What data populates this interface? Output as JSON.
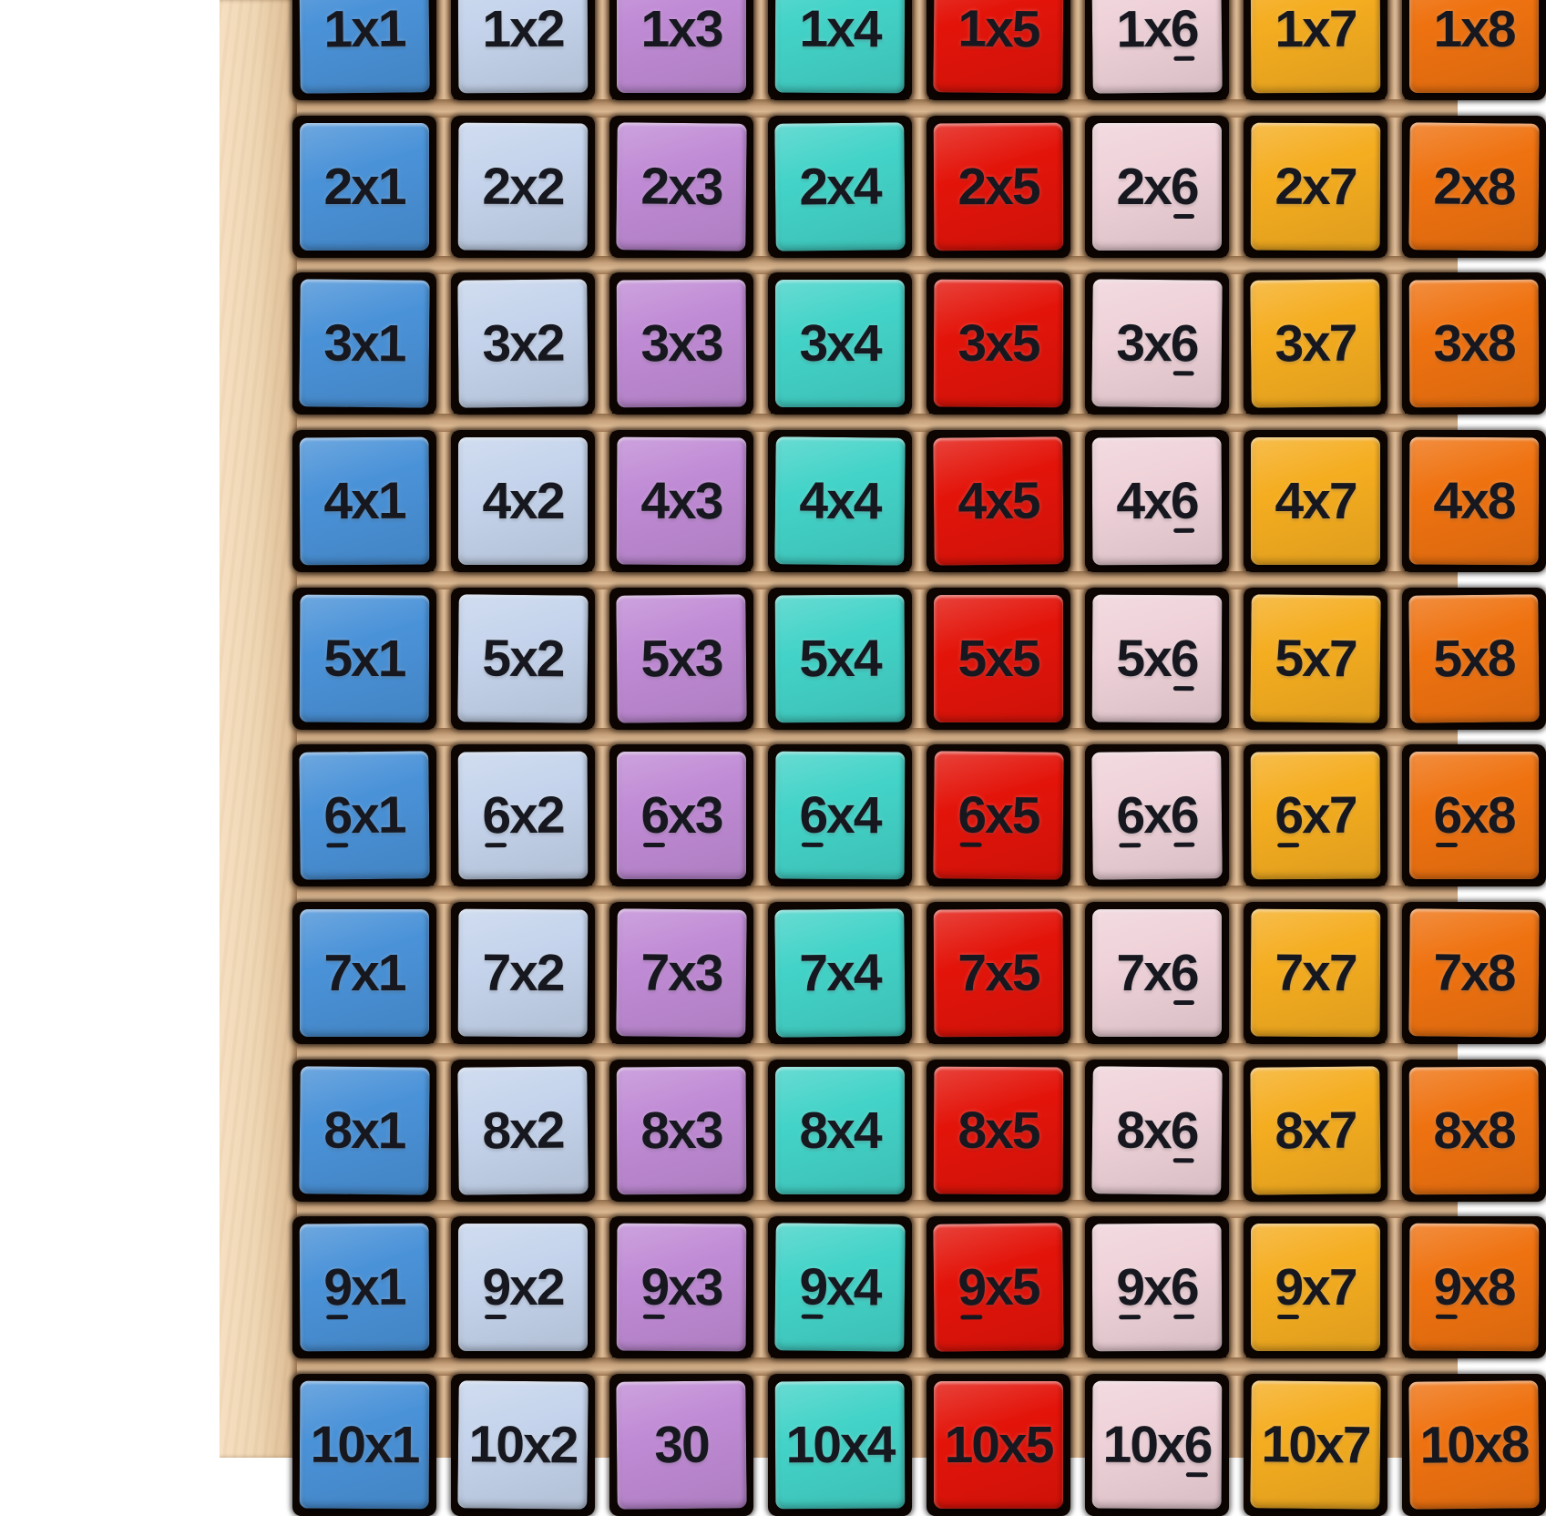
{
  "board": {
    "rows": 10,
    "columns": 8,
    "cells": [
      [
        "1x1",
        "1x2",
        "1x3",
        "1x4",
        "1x5",
        "1x6",
        "1x7",
        "1x8"
      ],
      [
        "2x1",
        "2x2",
        "2x3",
        "2x4",
        "2x5",
        "2x6",
        "2x7",
        "2x8"
      ],
      [
        "3x1",
        "3x2",
        "3x3",
        "3x4",
        "3x5",
        "3x6",
        "3x7",
        "3x8"
      ],
      [
        "4x1",
        "4x2",
        "4x3",
        "4x4",
        "4x5",
        "4x6",
        "4x7",
        "4x8"
      ],
      [
        "5x1",
        "5x2",
        "5x3",
        "5x4",
        "5x5",
        "5x6",
        "5x7",
        "5x8"
      ],
      [
        "6x1",
        "6x2",
        "6x3",
        "6x4",
        "6x5",
        "6x6",
        "6x7",
        "6x8"
      ],
      [
        "7x1",
        "7x2",
        "7x3",
        "7x4",
        "7x5",
        "7x6",
        "7x7",
        "7x8"
      ],
      [
        "8x1",
        "8x2",
        "8x3",
        "8x4",
        "8x5",
        "8x6",
        "8x7",
        "8x8"
      ],
      [
        "9x1",
        "9x2",
        "9x3",
        "9x4",
        "9x5",
        "9x6",
        "9x7",
        "9x8"
      ],
      [
        "10x1",
        "10x2",
        "30",
        "10x4",
        "10x5",
        "10x6",
        "10x7",
        "10x8"
      ]
    ],
    "flipped_tile": {
      "row": 10,
      "column": 3,
      "shown_value": "30"
    },
    "underlined_digits": [
      "6",
      "9"
    ],
    "colors": {
      "column_tiles": [
        "#4a92d8",
        "#c5d4ec",
        "#c08bd5",
        "#43d3c8",
        "#e3140a",
        "#efd2d9",
        "#f5ad20",
        "#ef7210"
      ],
      "tile_text": "#17181f",
      "wood_frame": "#eed6b4",
      "wood_lattice": "#c9a47f",
      "recess": "#0d0502",
      "background": "#ffffff"
    }
  }
}
